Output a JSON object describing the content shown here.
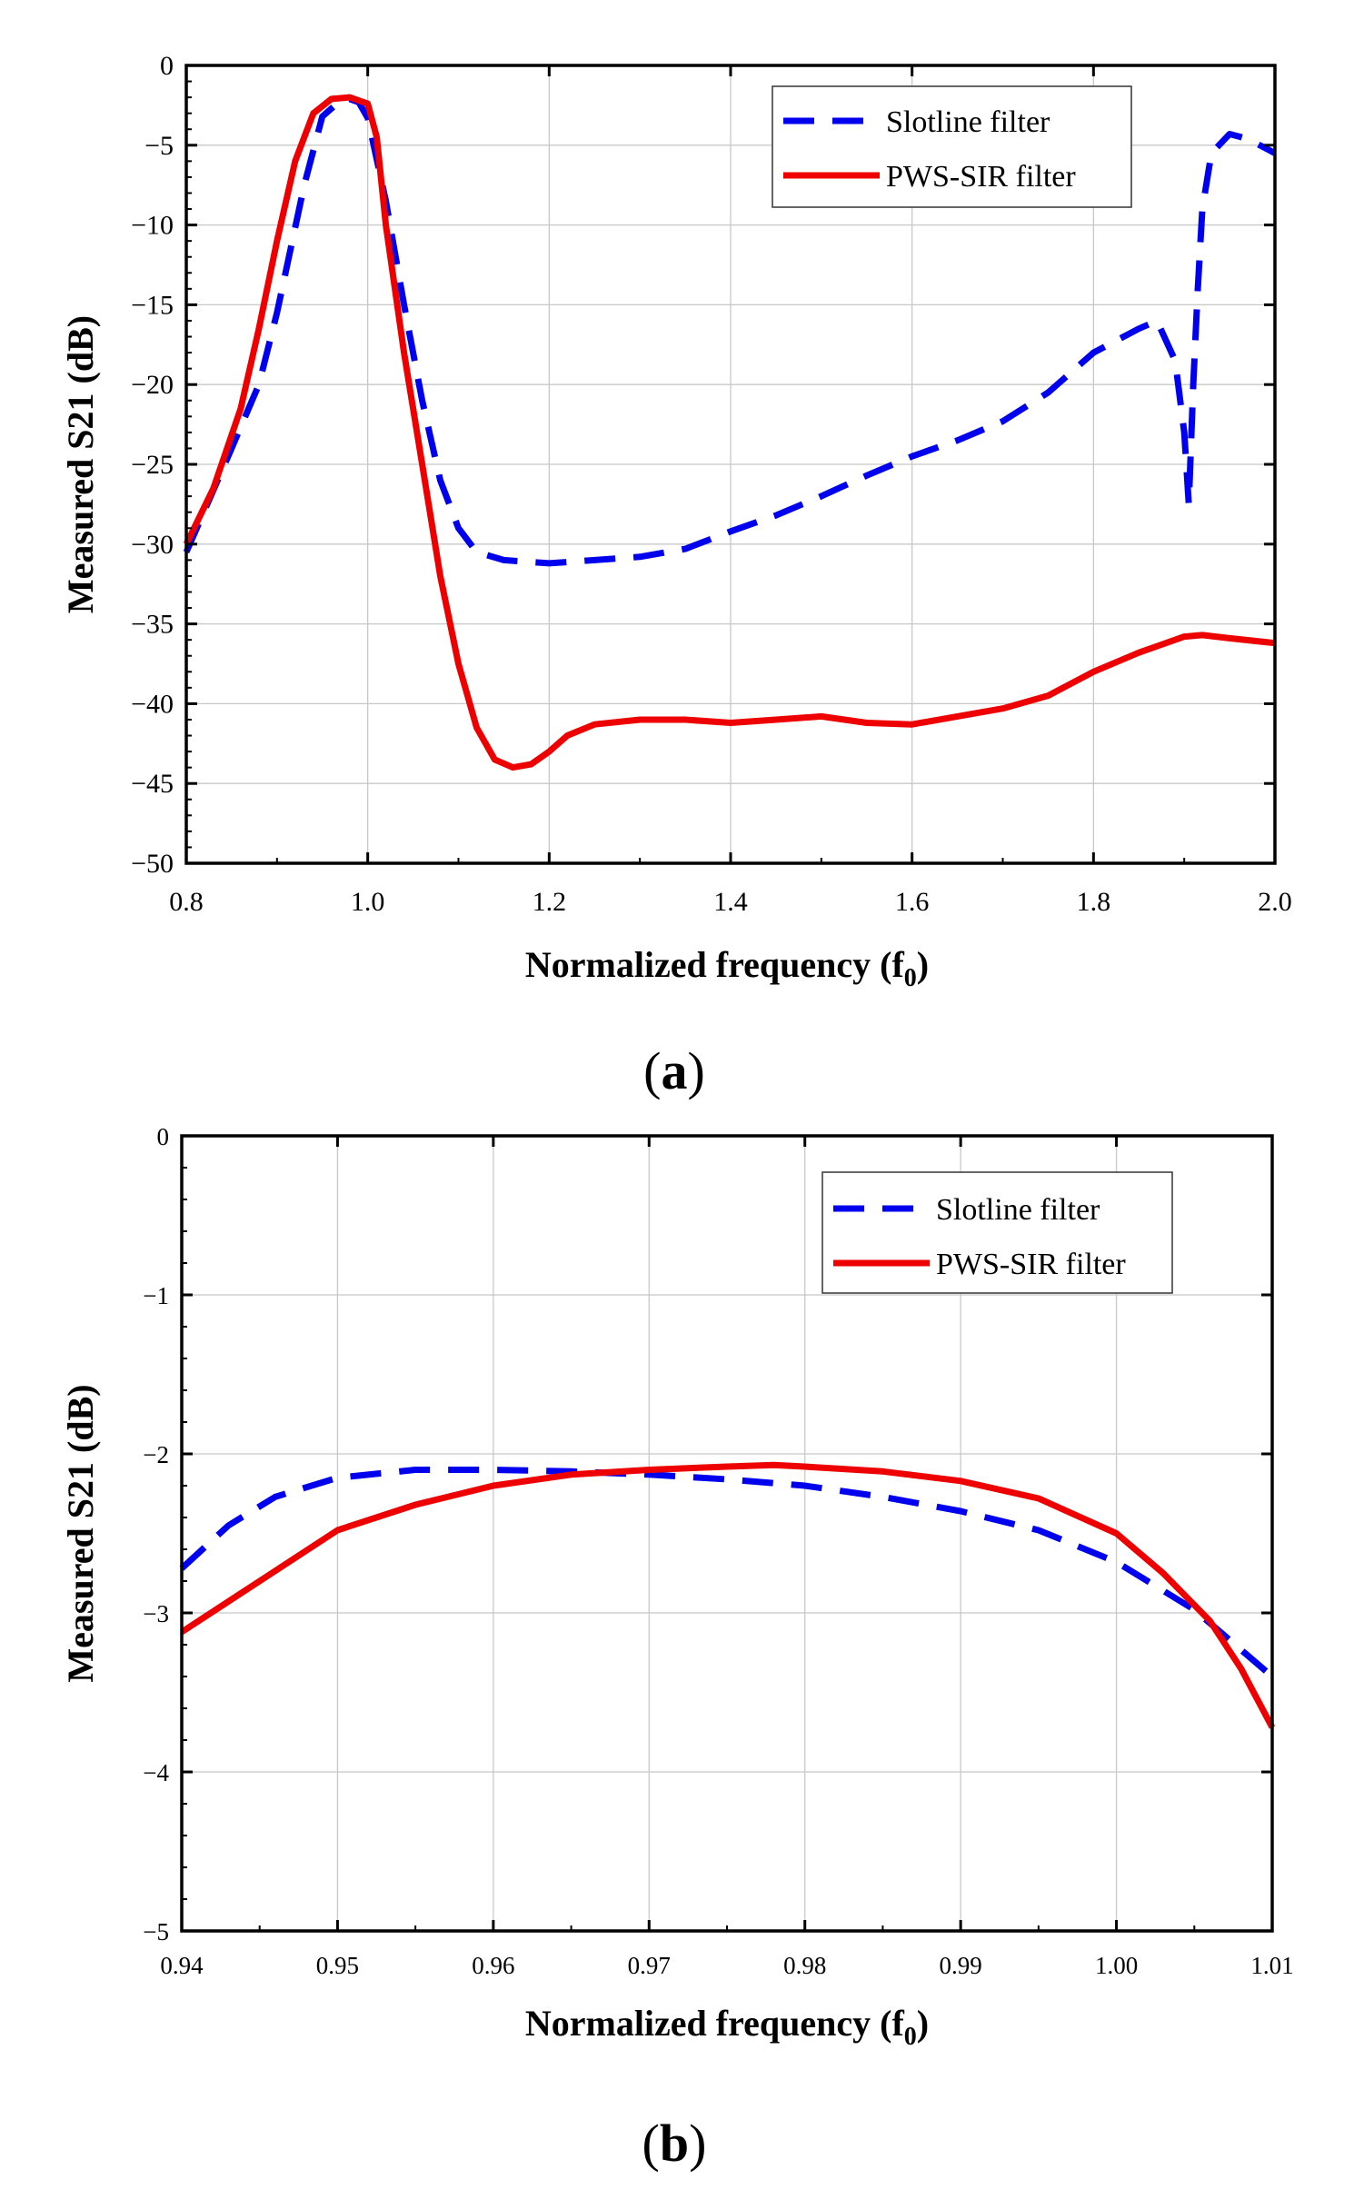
{
  "chart_data": [
    {
      "type": "line",
      "panel_label": "a",
      "xlabel": "Normalized frequency (f",
      "xlabel_sub": "0",
      "xlabel_close": ")",
      "ylabel": "Measured S21 (dB)",
      "xlim": [
        0.8,
        2.0
      ],
      "ylim": [
        -50,
        0
      ],
      "x_ticks": [
        0.8,
        1.0,
        1.2,
        1.4,
        1.6,
        1.8,
        2.0
      ],
      "x_tick_labels": [
        "0.8",
        "1.0",
        "1.2",
        "1.4",
        "1.6",
        "1.8",
        "2.0"
      ],
      "y_ticks": [
        0,
        -5,
        -10,
        -15,
        -20,
        -25,
        -30,
        -35,
        -40,
        -45,
        -50
      ],
      "y_tick_labels": [
        "0",
        "−5",
        "−10",
        "−15",
        "−20",
        "−25",
        "−30",
        "−35",
        "−40",
        "−45",
        "−50"
      ],
      "grid": true,
      "legend_position": "top-right",
      "series": [
        {
          "name": "Slotline filter",
          "color": "#0000ee",
          "style": "dashed",
          "x": [
            0.8,
            0.85,
            0.88,
            0.9,
            0.93,
            0.95,
            0.97,
            0.98,
            0.99,
            1.0,
            1.02,
            1.04,
            1.06,
            1.08,
            1.1,
            1.12,
            1.15,
            1.2,
            1.25,
            1.3,
            1.35,
            1.4,
            1.45,
            1.5,
            1.55,
            1.6,
            1.65,
            1.7,
            1.75,
            1.8,
            1.85,
            1.87,
            1.89,
            1.9,
            1.905,
            1.91,
            1.915,
            1.92,
            1.93,
            1.95,
            1.97,
            2.0
          ],
          "y": [
            -30.5,
            -24.0,
            -20.0,
            -15.5,
            -7.5,
            -3.2,
            -2.2,
            -2.1,
            -2.3,
            -3.3,
            -8.5,
            -15.0,
            -21.0,
            -26.0,
            -29.0,
            -30.5,
            -31.0,
            -31.2,
            -31.0,
            -30.8,
            -30.3,
            -29.2,
            -28.2,
            -27.0,
            -25.7,
            -24.5,
            -23.5,
            -22.3,
            -20.5,
            -18.0,
            -16.5,
            -16.0,
            -18.5,
            -23.0,
            -27.5,
            -20.0,
            -14.0,
            -9.0,
            -5.5,
            -4.3,
            -4.6,
            -5.5
          ]
        },
        {
          "name": "PWS-SIR filter",
          "color": "#ee0000",
          "style": "solid",
          "x": [
            0.8,
            0.83,
            0.86,
            0.88,
            0.9,
            0.92,
            0.94,
            0.96,
            0.98,
            1.0,
            1.01,
            1.02,
            1.04,
            1.06,
            1.08,
            1.1,
            1.12,
            1.14,
            1.16,
            1.18,
            1.2,
            1.22,
            1.25,
            1.3,
            1.35,
            1.4,
            1.45,
            1.5,
            1.55,
            1.6,
            1.65,
            1.7,
            1.75,
            1.8,
            1.85,
            1.9,
            1.92,
            1.95,
            2.0
          ],
          "y": [
            -30.0,
            -26.5,
            -21.5,
            -16.5,
            -11.0,
            -6.0,
            -3.0,
            -2.1,
            -2.0,
            -2.4,
            -4.5,
            -10.0,
            -18.0,
            -25.0,
            -32.0,
            -37.5,
            -41.5,
            -43.5,
            -44.0,
            -43.8,
            -43.0,
            -42.0,
            -41.3,
            -41.0,
            -41.0,
            -41.2,
            -41.0,
            -40.8,
            -41.2,
            -41.3,
            -40.8,
            -40.3,
            -39.5,
            -38.0,
            -36.8,
            -35.8,
            -35.7,
            -35.9,
            -36.2
          ]
        }
      ]
    },
    {
      "type": "line",
      "panel_label": "b",
      "xlabel": "Normalized frequency (f",
      "xlabel_sub": "0",
      "xlabel_close": ")",
      "ylabel": "Measured S21 (dB)",
      "xlim": [
        0.94,
        1.01
      ],
      "ylim": [
        -5,
        0
      ],
      "x_ticks": [
        0.94,
        0.95,
        0.96,
        0.97,
        0.98,
        0.99,
        1.0,
        1.01
      ],
      "x_tick_labels": [
        "0.94",
        "0.95",
        "0.96",
        "0.97",
        "0.98",
        "0.99",
        "1.00",
        "1.01"
      ],
      "y_ticks": [
        0,
        -1,
        -2,
        -3,
        -4,
        -5
      ],
      "y_tick_labels": [
        "0",
        "−1",
        "−2",
        "−3",
        "−4",
        "−5"
      ],
      "grid": true,
      "legend_position": "top-right",
      "series": [
        {
          "name": "Slotline filter",
          "color": "#0000ee",
          "style": "dashed",
          "x": [
            0.94,
            0.943,
            0.946,
            0.95,
            0.955,
            0.96,
            0.965,
            0.97,
            0.975,
            0.98,
            0.985,
            0.99,
            0.995,
            1.0,
            1.005,
            1.01
          ],
          "y": [
            -2.72,
            -2.45,
            -2.27,
            -2.15,
            -2.1,
            -2.1,
            -2.11,
            -2.13,
            -2.16,
            -2.2,
            -2.27,
            -2.36,
            -2.48,
            -2.68,
            -2.98,
            -3.4
          ]
        },
        {
          "name": "PWS-SIR filter",
          "color": "#ee0000",
          "style": "solid",
          "x": [
            0.94,
            0.945,
            0.95,
            0.955,
            0.96,
            0.965,
            0.97,
            0.975,
            0.978,
            0.98,
            0.985,
            0.99,
            0.995,
            1.0,
            1.003,
            1.006,
            1.008,
            1.01
          ],
          "y": [
            -3.12,
            -2.8,
            -2.48,
            -2.32,
            -2.2,
            -2.13,
            -2.1,
            -2.08,
            -2.07,
            -2.08,
            -2.11,
            -2.17,
            -2.28,
            -2.5,
            -2.75,
            -3.05,
            -3.35,
            -3.72
          ]
        }
      ]
    }
  ]
}
